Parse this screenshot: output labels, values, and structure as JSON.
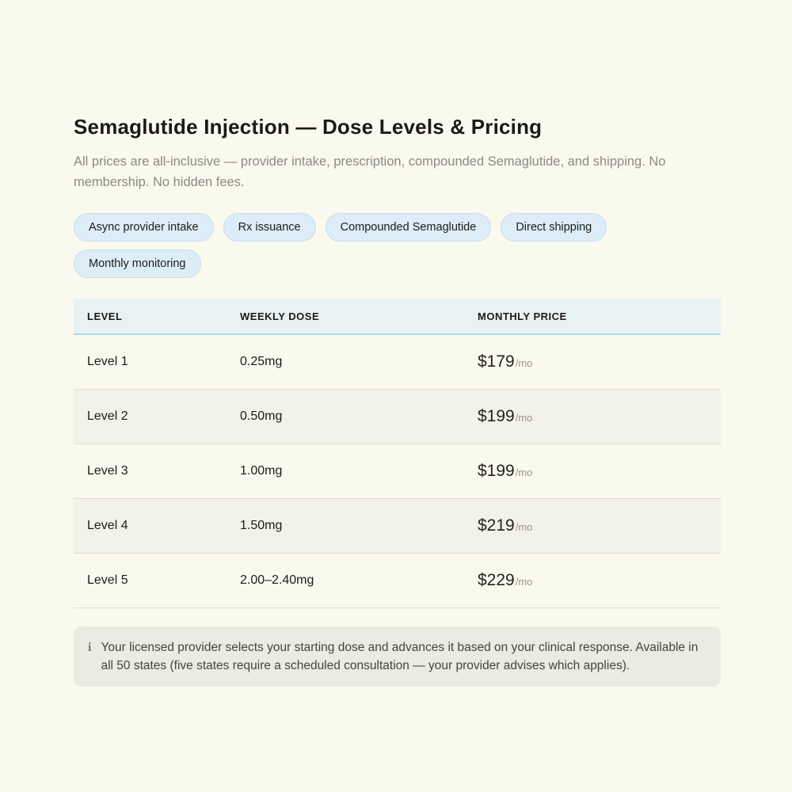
{
  "page": {
    "title": "Semaglutide Injection — Dose Levels & Pricing",
    "subtitle": "All prices are all-inclusive — provider intake, prescription, compounded Semaglutide, and shipping. No membership. No hidden fees."
  },
  "chips": [
    {
      "label": "Async provider intake"
    },
    {
      "label": "Rx issuance"
    },
    {
      "label": "Compounded Semaglutide"
    },
    {
      "label": "Direct shipping"
    },
    {
      "label": "Monthly monitoring"
    }
  ],
  "table": {
    "headers": [
      "LEVEL",
      "WEEKLY DOSE",
      "MONTHLY PRICE"
    ],
    "rows": [
      {
        "level": "Level 1",
        "dose": "0.25mg",
        "price": "$179",
        "period": "/mo"
      },
      {
        "level": "Level 2",
        "dose": "0.50mg",
        "price": "$199",
        "period": "/mo"
      },
      {
        "level": "Level 3",
        "dose": "1.00mg",
        "price": "$199",
        "period": "/mo"
      },
      {
        "level": "Level 4",
        "dose": "1.50mg",
        "price": "$219",
        "period": "/mo"
      },
      {
        "level": "Level 5",
        "dose": "2.00–2.40mg",
        "price": "$229",
        "period": "/mo"
      }
    ]
  },
  "note": {
    "icon_glyph": "i",
    "text": "Your licensed provider selects your starting dose and advances it based on your clinical response. Available in all 50 states (five states require a scheduled consultation — your provider advises which applies)."
  },
  "colors": {
    "page_background": "#faf9ee",
    "chip_background": "#ddedf8",
    "chip_border": "#c5dfee",
    "table_header_background": "#e9f2f3",
    "table_header_border": "#aed6ee",
    "row_alt_background": "#f3f2e9",
    "row_divider": "#dfddd3",
    "note_background": "#ebebe1",
    "text_primary": "#1b1a17",
    "text_muted": "#8b8a83",
    "price_period_muted": "#97958c"
  }
}
